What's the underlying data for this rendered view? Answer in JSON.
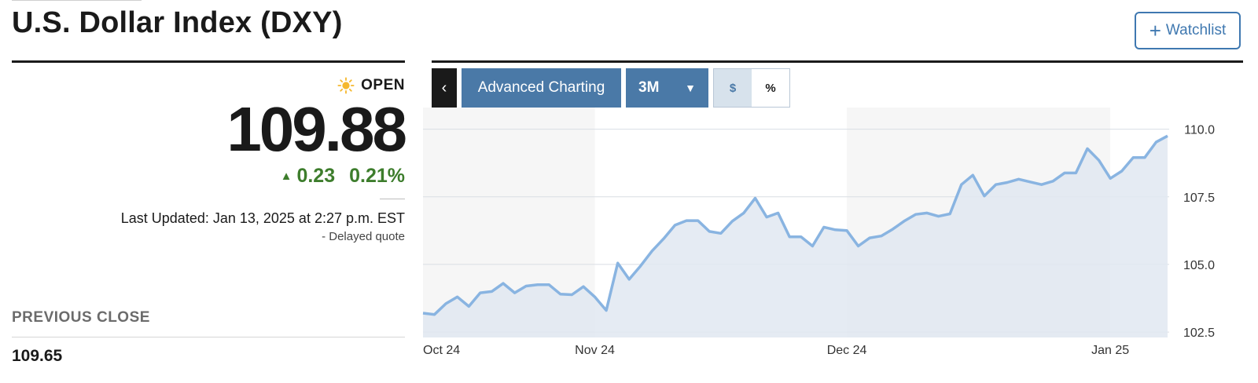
{
  "header": {
    "title": "U.S. Dollar Index (DXY)",
    "watchlist_label": "Watchlist"
  },
  "quote": {
    "market_status": "OPEN",
    "price": "109.88",
    "change": "0.23",
    "change_percent": "0.21%",
    "last_updated": "Last Updated: Jan 13, 2025 at 2:27 p.m. EST",
    "delayed": "-  Delayed quote"
  },
  "previous_close": {
    "label": "PREVIOUS CLOSE",
    "value": "109.65"
  },
  "toolbar": {
    "collapse_icon": "chevron-left-icon",
    "advanced_charting_label": "Advanced Charting",
    "range_label": "3M",
    "currency_toggle": "$",
    "percent_toggle": "%",
    "active_toggle": "$"
  },
  "colors": {
    "line": "#89b4e1",
    "fill": "#e1e8f1",
    "up": "#3d7d2c",
    "accent": "#4a79a7",
    "sun": "#f5b82e"
  },
  "chart_data": {
    "type": "area",
    "x_tick_labels": [
      "Oct 24",
      "Nov 24",
      "Dec 24",
      "Jan 25"
    ],
    "x_tick_positions": [
      0,
      15,
      37,
      60
    ],
    "y_tick_labels": [
      "110.0",
      "107.5",
      "105.0",
      "102.5"
    ],
    "y_ticks": [
      110.0,
      107.5,
      105.0,
      102.5
    ],
    "ylim": [
      102.3,
      110.8
    ],
    "grid": true,
    "series": [
      {
        "values": [
          103.2,
          103.15,
          103.55,
          103.8,
          103.45,
          103.95,
          104.0,
          104.3,
          103.95,
          104.2,
          104.25,
          104.25,
          103.9,
          103.88,
          104.18,
          103.8,
          103.3,
          105.05,
          104.45,
          104.95,
          105.5,
          105.95,
          106.45,
          106.62,
          106.62,
          106.22,
          106.15,
          106.6,
          106.9,
          107.45,
          106.75,
          106.9,
          106.02,
          106.02,
          105.68,
          106.38,
          106.28,
          106.25,
          105.68,
          105.98,
          106.05,
          106.3,
          106.6,
          106.85,
          106.9,
          106.78,
          106.87,
          107.95,
          108.3,
          107.53,
          107.95,
          108.03,
          108.15,
          108.05,
          107.95,
          108.08,
          108.38,
          108.38,
          109.28,
          108.85,
          108.18,
          108.45,
          108.95,
          108.95,
          109.52,
          109.75
        ]
      }
    ]
  }
}
